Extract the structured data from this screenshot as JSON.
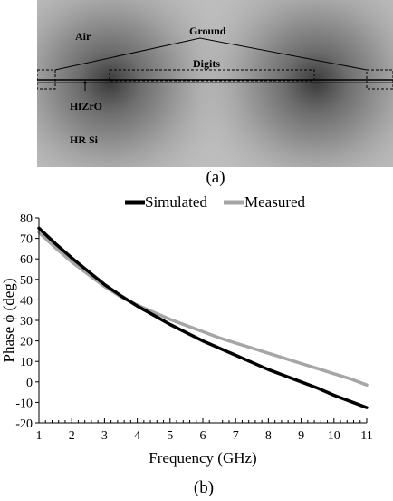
{
  "figure_a": {
    "caption": "(a)",
    "labels": {
      "air": "Air",
      "ground": "Ground",
      "digits": "Digits",
      "hfzro": "HfZrO",
      "hr_si": "HR Si"
    }
  },
  "figure_b": {
    "caption": "(b)"
  },
  "chart_data": {
    "type": "line",
    "title": "",
    "xlabel": "Frequency (GHz)",
    "ylabel": "Phase ϕ (deg)",
    "xlim": [
      1,
      11
    ],
    "ylim": [
      -20,
      80
    ],
    "x_ticks": [
      1,
      2,
      3,
      4,
      5,
      6,
      7,
      8,
      9,
      10,
      11
    ],
    "y_ticks": [
      -20,
      -10,
      0,
      10,
      20,
      30,
      40,
      50,
      60,
      70,
      80
    ],
    "grid": false,
    "legend_position": "top-center",
    "series": [
      {
        "name": "Simulated",
        "color": "#000000",
        "x": [
          1,
          1.5,
          2,
          2.5,
          3,
          3.5,
          4,
          4.5,
          5,
          5.5,
          6,
          6.5,
          7,
          7.5,
          8,
          8.5,
          9,
          9.5,
          10,
          10.5,
          11
        ],
        "y": [
          75,
          67.5,
          60.5,
          54,
          47.5,
          42,
          37,
          32.5,
          28,
          24,
          20,
          16.5,
          13,
          9.5,
          6,
          3,
          0,
          -3,
          -6.5,
          -9.5,
          -12.5
        ]
      },
      {
        "name": "Measured",
        "color": "#a6a6a6",
        "x": [
          1,
          1.5,
          2,
          2.5,
          3,
          3.5,
          4,
          4.5,
          5,
          5.5,
          6,
          6.5,
          7,
          7.5,
          8,
          8.5,
          9,
          9.5,
          10,
          10.5,
          11
        ],
        "y": [
          73,
          65.5,
          58.5,
          52.5,
          46.5,
          41.5,
          37.5,
          34,
          30.5,
          27.5,
          24.5,
          21.5,
          19,
          16.5,
          14,
          11.5,
          9,
          6.5,
          4,
          1.5,
          -1.5
        ]
      }
    ]
  }
}
